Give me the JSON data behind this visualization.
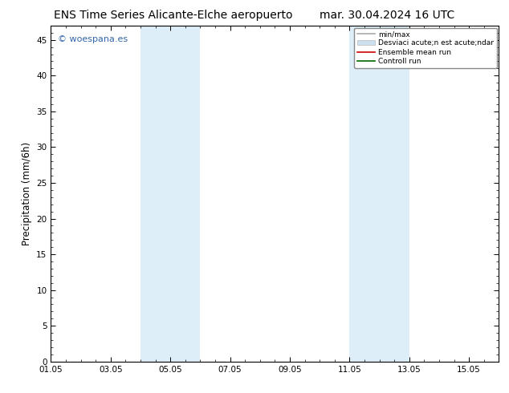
{
  "title_left": "ENS Time Series Alicante-Elche aeropuerto",
  "title_right": "mar. 30.04.2024 16 UTC",
  "ylabel": "Precipitation (mm/6h)",
  "ylim": [
    0,
    47
  ],
  "yticks": [
    0,
    5,
    10,
    15,
    20,
    25,
    30,
    35,
    40,
    45
  ],
  "xlim": [
    0,
    15
  ],
  "xtick_labels": [
    "01.05",
    "03.05",
    "05.05",
    "07.05",
    "09.05",
    "11.05",
    "13.05",
    "15.05"
  ],
  "xtick_positions": [
    0,
    2,
    4,
    6,
    8,
    10,
    12,
    14
  ],
  "shaded_regions": [
    {
      "start": 3.0,
      "end": 5.0,
      "color": "#ddeef8"
    },
    {
      "start": 10.0,
      "end": 12.0,
      "color": "#ddeef8"
    }
  ],
  "watermark_text": "© woespana.es",
  "watermark_color": "#3366aa",
  "legend_items": [
    {
      "label": "min/max",
      "color": "#aaaaaa",
      "lw": 1.2,
      "style": "line"
    },
    {
      "label": "Desviaci acute;n est acute;ndar",
      "color": "#cce0f0",
      "style": "patch"
    },
    {
      "label": "Ensemble mean run",
      "color": "#cc0000",
      "lw": 1.2,
      "style": "line"
    },
    {
      "label": "Controll run",
      "color": "#006600",
      "lw": 1.2,
      "style": "line"
    }
  ],
  "bg_color": "#ffffff",
  "plot_bg_color": "#ffffff",
  "tick_color": "#000000",
  "title_fontsize": 10,
  "tick_fontsize": 7.5,
  "ylabel_fontsize": 8.5,
  "watermark_fontsize": 8
}
